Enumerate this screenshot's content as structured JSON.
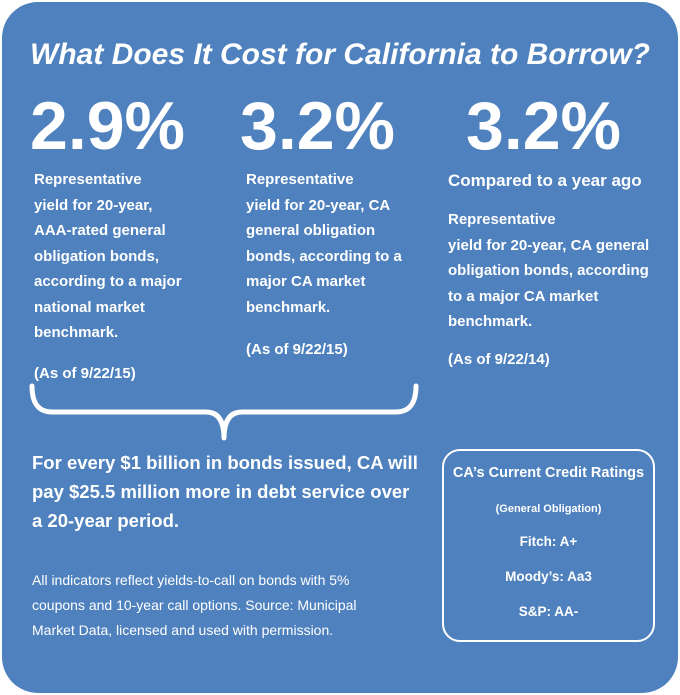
{
  "title": "What Does It Cost for California to Borrow?",
  "columns": [
    {
      "value": "2.9%",
      "description_lines": [
        "Representative",
        "yield for 20-year,",
        "AAA-rated general",
        "obligation bonds,",
        "according to a major",
        "national market",
        "benchmark."
      ],
      "as_of": "(As of 9/22/15)"
    },
    {
      "value": "3.2%",
      "description_lines": [
        "Representative",
        "yield for 20-year, CA",
        "general obligation",
        "bonds, according to a",
        "major CA market",
        "benchmark."
      ],
      "as_of": "(As of 9/22/15)"
    },
    {
      "value": "3.2%",
      "subheading": "Compared to a year ago",
      "description_lines": [
        "Representative",
        "yield for 20-year, CA general",
        "obligation bonds, according",
        "to a major CA market",
        "benchmark."
      ],
      "as_of": "(As of 9/22/14)"
    }
  ],
  "summary_lines": [
    "For every $1 billion in bonds issued, CA will",
    "pay $25.5 million more in debt service over",
    "a 20-year period."
  ],
  "footnote_lines": [
    "All indicators reflect yields-to-call on bonds with 5%",
    "coupons and 10-year call options.  Source:  Municipal",
    "Market Data, licensed and used with permission."
  ],
  "ratings": {
    "title": "CA’s Current Credit Ratings",
    "subtitle": "(General Obligation)",
    "items": [
      "Fitch: A+",
      "Moody’s: Aa3",
      "S&P: AA-"
    ]
  },
  "colors": {
    "background": "#4e81bd",
    "text": "#ffffff"
  }
}
